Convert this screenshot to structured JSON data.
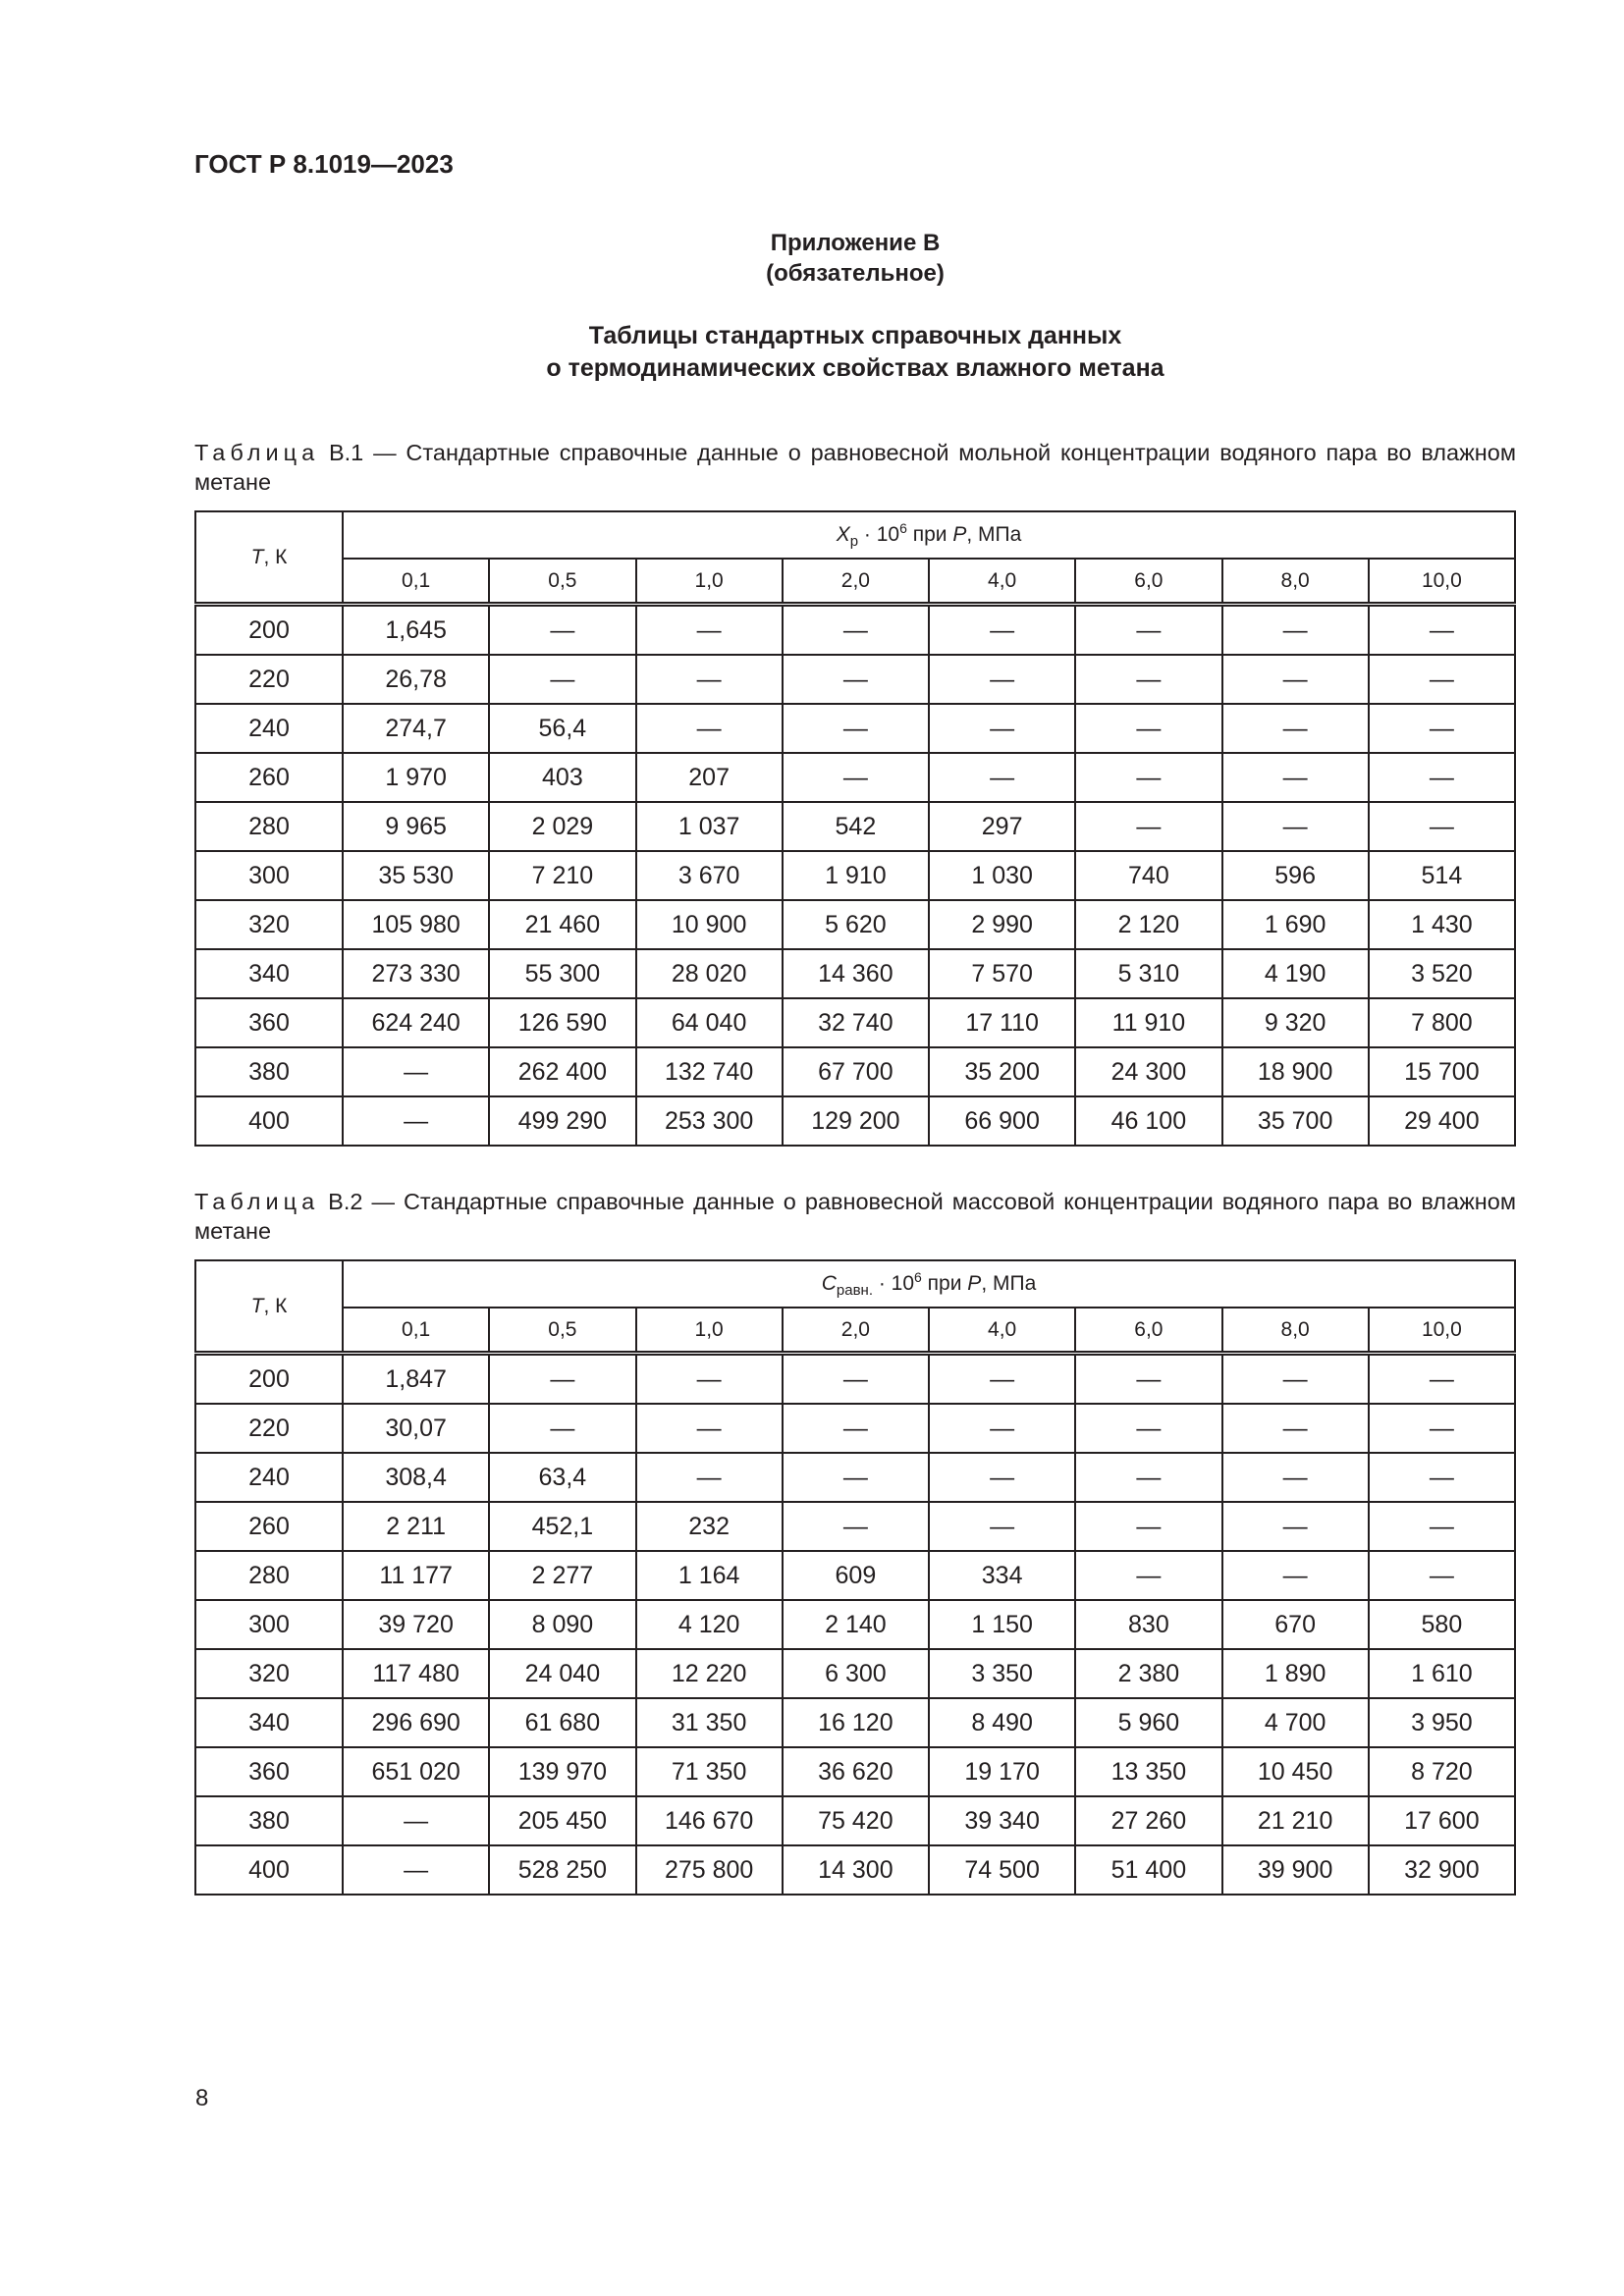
{
  "header": {
    "doc_code": "ГОСТ Р 8.1019—2023"
  },
  "annex": {
    "title": "Приложение В",
    "status": "(обязательное)"
  },
  "section_title": {
    "line1": "Таблицы стандартных справочных данных",
    "line2": "о термодинамических свойствах влажного метана"
  },
  "tables": [
    {
      "caption_prefix": "Таблица",
      "caption_rest": " В.1 — Стандартные справочные данные о равновесной мольной концентрации водяного пара во влажном метане",
      "row_header": "T, К",
      "group_symbol": "X",
      "group_sub": "р",
      "group_mid": " · 10",
      "group_sup": "6",
      "group_tail_pre": " при ",
      "group_tail_var": "P",
      "group_tail_post": ", МПа",
      "pressures": [
        "0,1",
        "0,5",
        "1,0",
        "2,0",
        "4,0",
        "6,0",
        "8,0",
        "10,0"
      ],
      "rows": [
        [
          "200",
          "1,645",
          "—",
          "—",
          "—",
          "—",
          "—",
          "—",
          "—"
        ],
        [
          "220",
          "26,78",
          "—",
          "—",
          "—",
          "—",
          "—",
          "—",
          "—"
        ],
        [
          "240",
          "274,7",
          "56,4",
          "—",
          "—",
          "—",
          "—",
          "—",
          "—"
        ],
        [
          "260",
          "1 970",
          "403",
          "207",
          "—",
          "—",
          "—",
          "—",
          "—"
        ],
        [
          "280",
          "9 965",
          "2 029",
          "1 037",
          "542",
          "297",
          "—",
          "—",
          "—"
        ],
        [
          "300",
          "35 530",
          "7 210",
          "3 670",
          "1 910",
          "1 030",
          "740",
          "596",
          "514"
        ],
        [
          "320",
          "105 980",
          "21 460",
          "10 900",
          "5 620",
          "2 990",
          "2 120",
          "1 690",
          "1 430"
        ],
        [
          "340",
          "273 330",
          "55 300",
          "28 020",
          "14 360",
          "7 570",
          "5 310",
          "4 190",
          "3 520"
        ],
        [
          "360",
          "624 240",
          "126 590",
          "64 040",
          "32 740",
          "17 110",
          "11 910",
          "9 320",
          "7 800"
        ],
        [
          "380",
          "—",
          "262 400",
          "132 740",
          "67 700",
          "35 200",
          "24 300",
          "18 900",
          "15 700"
        ],
        [
          "400",
          "—",
          "499 290",
          "253 300",
          "129 200",
          "66 900",
          "46 100",
          "35 700",
          "29 400"
        ]
      ]
    },
    {
      "caption_prefix": "Таблица",
      "caption_rest": " В.2 — Стандартные справочные данные о равновесной массовой концентрации водяного пара во влажном метане",
      "row_header": "T, К",
      "group_symbol": "C",
      "group_sub": "равн.",
      "group_mid": " · 10",
      "group_sup": "6",
      "group_tail_pre": " при ",
      "group_tail_var": "P",
      "group_tail_post": ", МПа",
      "pressures": [
        "0,1",
        "0,5",
        "1,0",
        "2,0",
        "4,0",
        "6,0",
        "8,0",
        "10,0"
      ],
      "rows": [
        [
          "200",
          "1,847",
          "—",
          "—",
          "—",
          "—",
          "—",
          "—",
          "—"
        ],
        [
          "220",
          "30,07",
          "—",
          "—",
          "—",
          "—",
          "—",
          "—",
          "—"
        ],
        [
          "240",
          "308,4",
          "63,4",
          "—",
          "—",
          "—",
          "—",
          "—",
          "—"
        ],
        [
          "260",
          "2 211",
          "452,1",
          "232",
          "—",
          "—",
          "—",
          "—",
          "—"
        ],
        [
          "280",
          "11 177",
          "2 277",
          "1 164",
          "609",
          "334",
          "—",
          "—",
          "—"
        ],
        [
          "300",
          "39 720",
          "8 090",
          "4 120",
          "2 140",
          "1 150",
          "830",
          "670",
          "580"
        ],
        [
          "320",
          "117 480",
          "24 040",
          "12 220",
          "6 300",
          "3 350",
          "2 380",
          "1 890",
          "1 610"
        ],
        [
          "340",
          "296 690",
          "61 680",
          "31 350",
          "16 120",
          "8 490",
          "5 960",
          "4 700",
          "3 950"
        ],
        [
          "360",
          "651 020",
          "139 970",
          "71 350",
          "36 620",
          "19 170",
          "13 350",
          "10 450",
          "8 720"
        ],
        [
          "380",
          "—",
          "205 450",
          "146 670",
          "75 420",
          "39 340",
          "27 260",
          "21 210",
          "17 600"
        ],
        [
          "400",
          "—",
          "528 250",
          "275 800",
          "14 300",
          "74 500",
          "51 400",
          "39 900",
          "32 900"
        ]
      ]
    }
  ],
  "footer": {
    "page_number": "8"
  }
}
